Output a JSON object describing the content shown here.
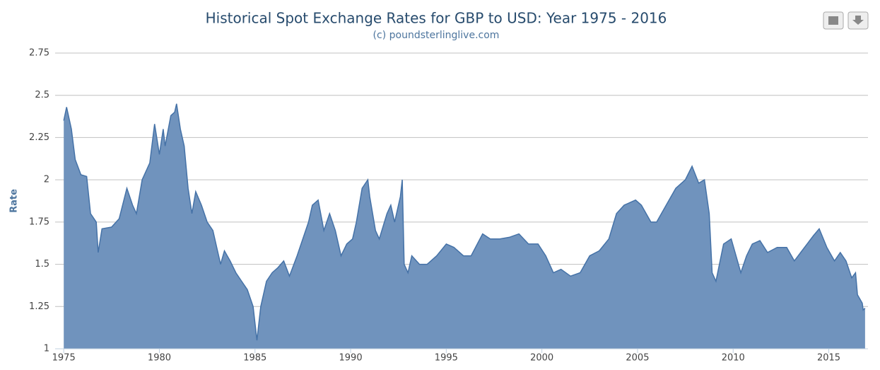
{
  "chart_data": {
    "type": "area",
    "title": "Historical Spot Exchange Rates for GBP to USD: Year 1975 - 2016",
    "subtitle": "(c) poundsterlinglive.com",
    "y_label": "Rate",
    "color": "#4572a7",
    "fill_color": "#7093bd",
    "grid": true,
    "xlim": [
      1974.55,
      2017.05
    ],
    "xticks": [
      1975,
      1980,
      1985,
      1990,
      1995,
      2000,
      2005,
      2010,
      2015
    ],
    "ylim": [
      1,
      2.75
    ],
    "yticks": [
      1,
      1.25,
      1.5,
      1.75,
      2,
      2.25,
      2.5,
      2.75
    ],
    "x": [
      1975.0,
      1975.15,
      1975.4,
      1975.6,
      1975.9,
      1976.2,
      1976.4,
      1976.7,
      1976.8,
      1977.0,
      1977.5,
      1977.9,
      1978.3,
      1978.6,
      1978.8,
      1979.1,
      1979.5,
      1979.75,
      1980.0,
      1980.2,
      1980.3,
      1980.6,
      1980.8,
      1980.9,
      1981.1,
      1981.3,
      1981.5,
      1981.7,
      1981.9,
      1982.2,
      1982.5,
      1982.8,
      1983.0,
      1983.2,
      1983.4,
      1983.7,
      1984.0,
      1984.3,
      1984.6,
      1984.9,
      1985.1,
      1985.3,
      1985.6,
      1985.9,
      1986.2,
      1986.5,
      1986.8,
      1987.2,
      1987.5,
      1987.8,
      1988.0,
      1988.3,
      1988.6,
      1988.9,
      1989.2,
      1989.5,
      1989.8,
      1990.1,
      1990.3,
      1990.6,
      1990.9,
      1991.0,
      1991.3,
      1991.5,
      1991.9,
      1992.1,
      1992.3,
      1992.6,
      1992.7,
      1992.8,
      1993.0,
      1993.2,
      1993.6,
      1994.0,
      1994.5,
      1995.0,
      1995.4,
      1995.9,
      1996.3,
      1996.9,
      1997.3,
      1997.8,
      1998.3,
      1998.8,
      1999.3,
      1999.8,
      2000.2,
      2000.6,
      2001.0,
      2001.5,
      2002.0,
      2002.5,
      2003.0,
      2003.5,
      2003.9,
      2004.3,
      2004.9,
      2005.2,
      2005.7,
      2006.0,
      2006.5,
      2007.0,
      2007.5,
      2007.85,
      2008.2,
      2008.5,
      2008.75,
      2008.9,
      2009.1,
      2009.5,
      2009.9,
      2010.4,
      2010.7,
      2011.0,
      2011.4,
      2011.8,
      2012.3,
      2012.8,
      2013.2,
      2013.6,
      2014.2,
      2014.5,
      2014.9,
      2015.3,
      2015.6,
      2015.9,
      2016.2,
      2016.4,
      2016.5,
      2016.75,
      2016.8,
      2016.9
    ],
    "values": [
      2.35,
      2.43,
      2.3,
      2.12,
      2.03,
      2.02,
      1.8,
      1.75,
      1.57,
      1.71,
      1.72,
      1.77,
      1.95,
      1.85,
      1.8,
      2.0,
      2.1,
      2.33,
      2.15,
      2.3,
      2.2,
      2.38,
      2.4,
      2.45,
      2.3,
      2.2,
      1.95,
      1.8,
      1.93,
      1.85,
      1.75,
      1.7,
      1.6,
      1.5,
      1.58,
      1.52,
      1.45,
      1.4,
      1.35,
      1.25,
      1.05,
      1.25,
      1.4,
      1.45,
      1.48,
      1.52,
      1.43,
      1.55,
      1.65,
      1.75,
      1.85,
      1.88,
      1.7,
      1.8,
      1.7,
      1.55,
      1.62,
      1.65,
      1.75,
      1.95,
      2.0,
      1.9,
      1.7,
      1.65,
      1.8,
      1.85,
      1.75,
      1.9,
      2.0,
      1.5,
      1.45,
      1.55,
      1.5,
      1.5,
      1.55,
      1.62,
      1.6,
      1.55,
      1.55,
      1.68,
      1.65,
      1.65,
      1.66,
      1.68,
      1.62,
      1.62,
      1.55,
      1.45,
      1.47,
      1.43,
      1.45,
      1.55,
      1.58,
      1.65,
      1.8,
      1.85,
      1.88,
      1.85,
      1.75,
      1.75,
      1.85,
      1.95,
      2.0,
      2.08,
      1.98,
      2.0,
      1.8,
      1.45,
      1.4,
      1.62,
      1.65,
      1.45,
      1.55,
      1.62,
      1.64,
      1.57,
      1.6,
      1.6,
      1.52,
      1.58,
      1.67,
      1.71,
      1.6,
      1.52,
      1.57,
      1.52,
      1.42,
      1.45,
      1.32,
      1.27,
      1.23,
      1.24
    ]
  }
}
